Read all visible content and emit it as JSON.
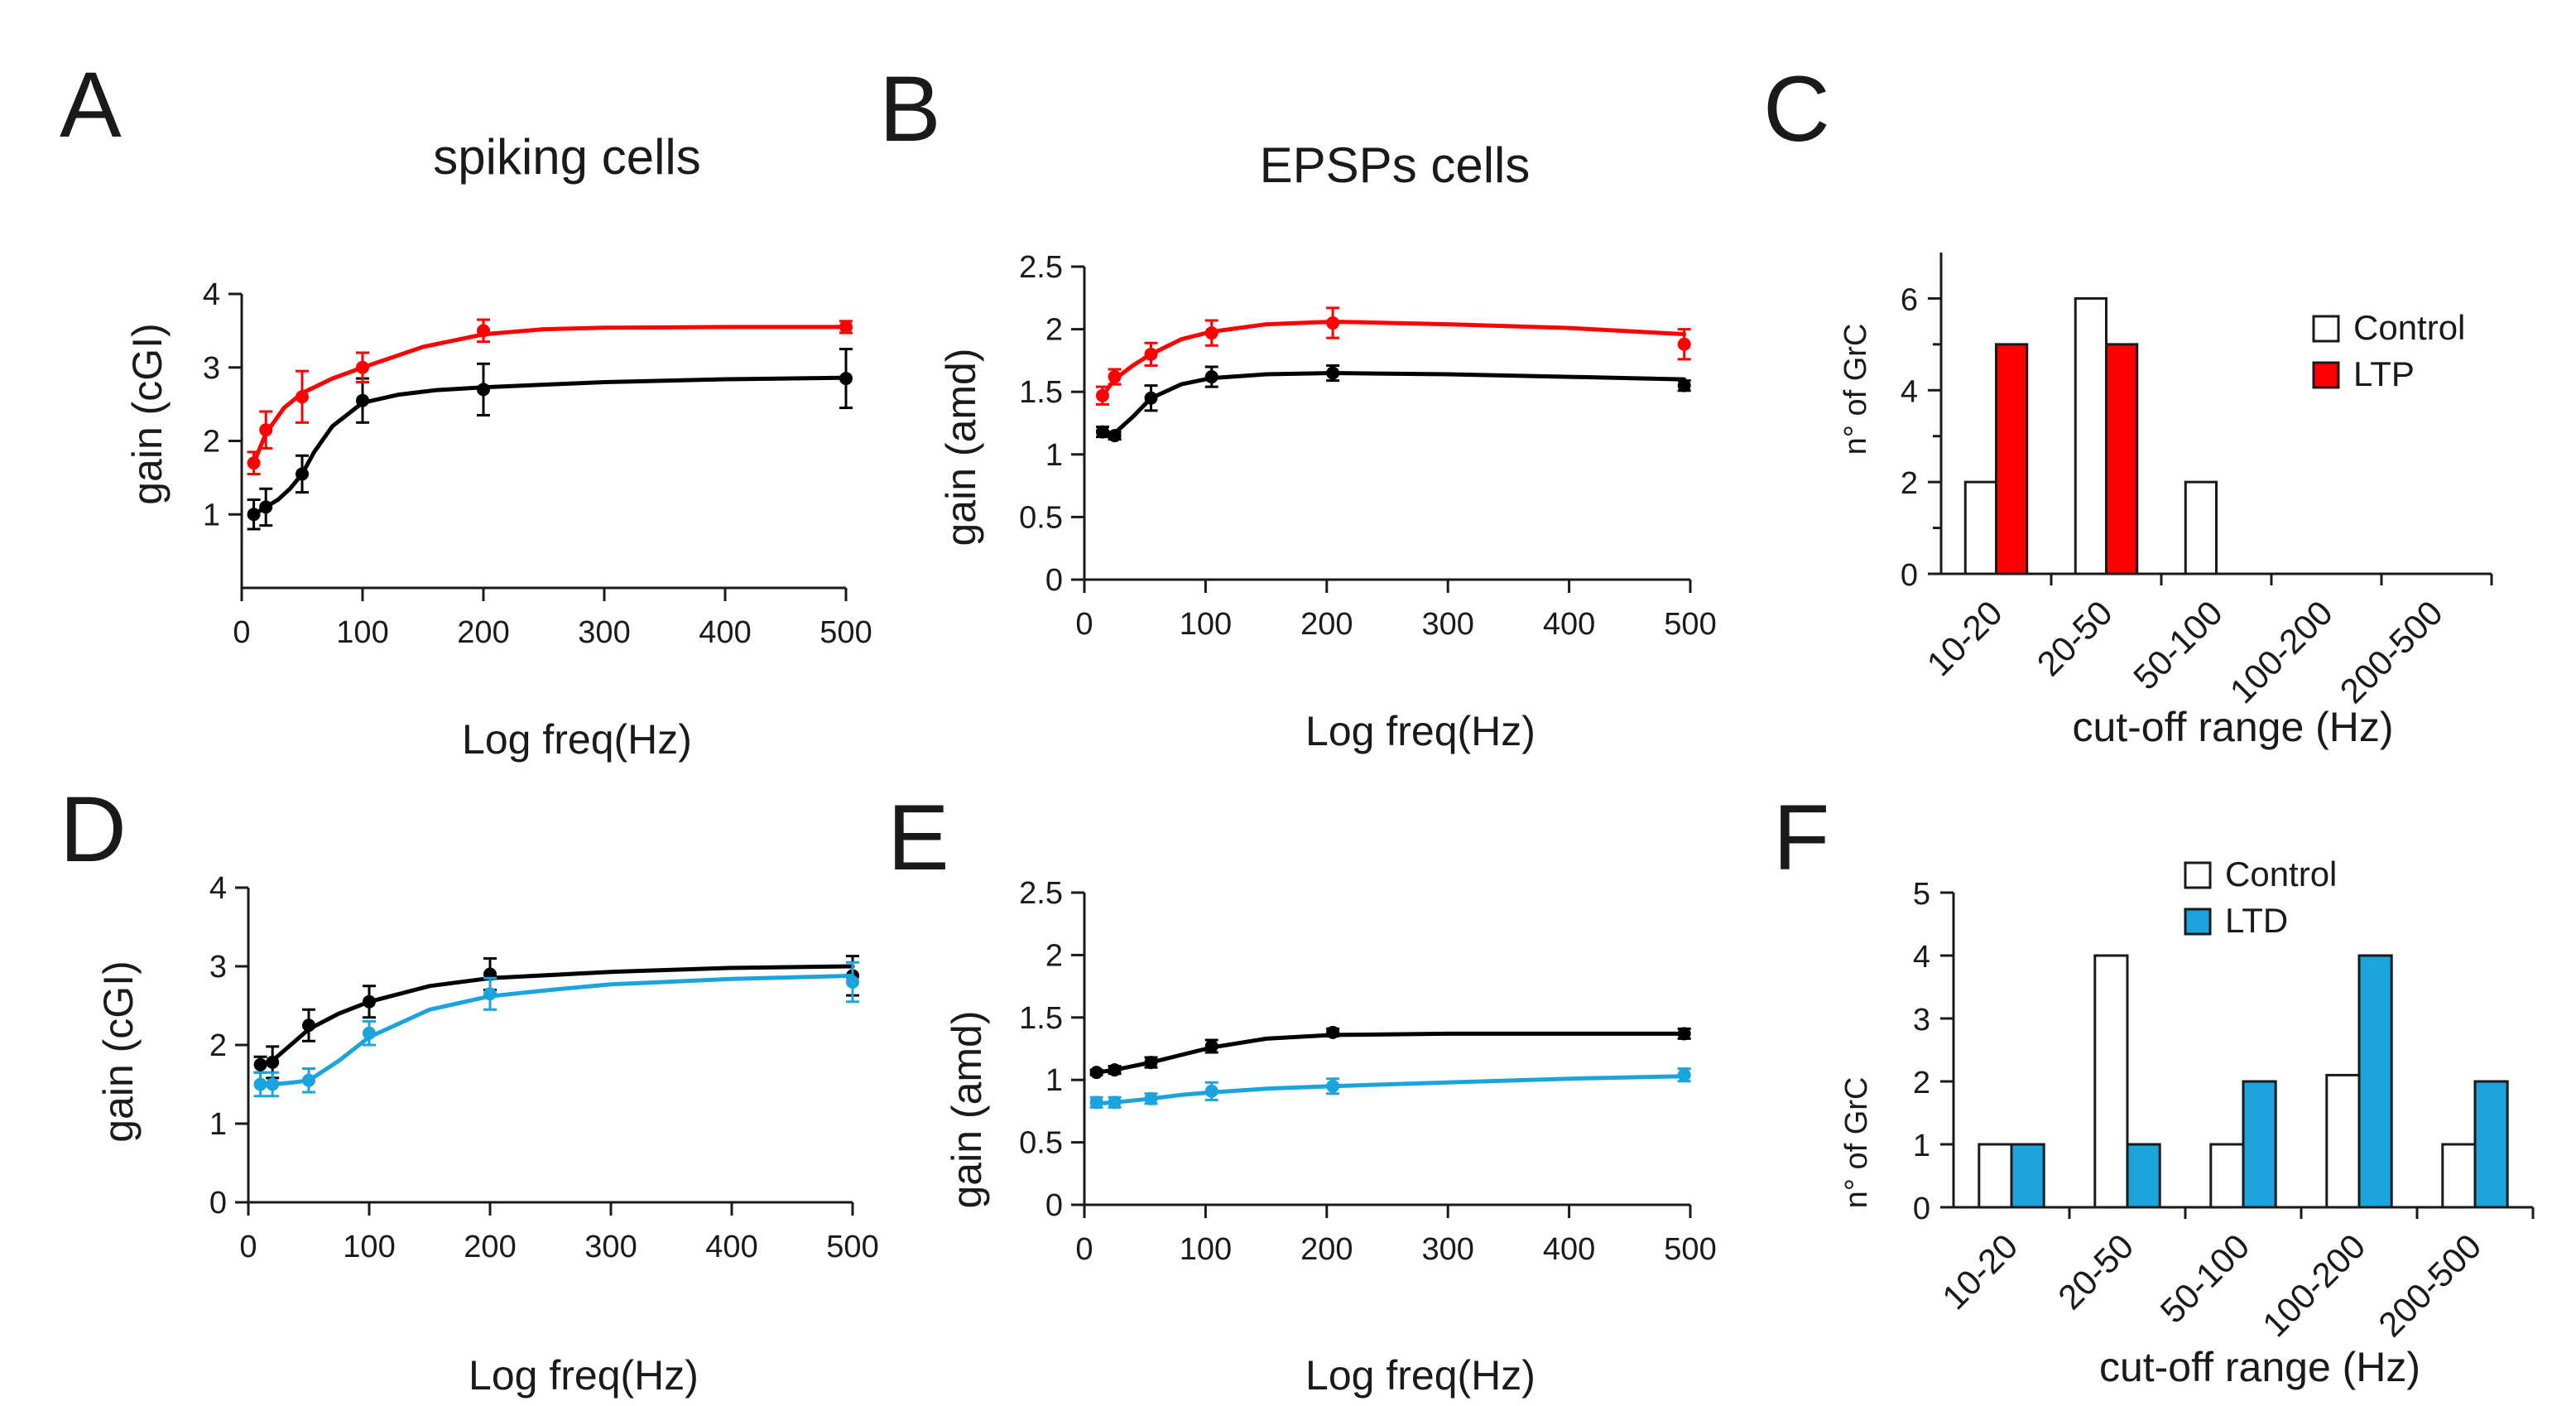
{
  "figure": {
    "panels": {
      "A": {
        "letter": "A",
        "title": "spiking cells"
      },
      "B": {
        "letter": "B",
        "title": "EPSPs cells"
      },
      "C": {
        "letter": "C"
      },
      "D": {
        "letter": "D"
      },
      "E": {
        "letter": "E"
      },
      "F": {
        "letter": "F"
      }
    }
  },
  "colors": {
    "control": "#000000",
    "ltp": "#ff0000",
    "ltd": "#1aa3dc",
    "bar_outline": "#1a1a1a",
    "control_bar_fill": "#ffffff"
  },
  "chart_data": [
    {
      "id": "A",
      "type": "line",
      "xlabel": "Log freq(Hz)",
      "ylabel": "gain (cGI)",
      "xlim": [
        0,
        500
      ],
      "ylim": [
        0,
        4
      ],
      "xticks": [
        0,
        100,
        200,
        300,
        400,
        500
      ],
      "yticks": [
        1,
        2,
        3,
        4
      ],
      "series": [
        {
          "name": "Control",
          "color": "#000000",
          "x": [
            10,
            20,
            50,
            100,
            200,
            500
          ],
          "y": [
            1.0,
            1.1,
            1.55,
            2.55,
            2.7,
            2.85
          ],
          "err": [
            0.2,
            0.25,
            0.25,
            0.3,
            0.35,
            0.4
          ],
          "fit": [
            [
              10,
              1.0
            ],
            [
              20,
              1.1
            ],
            [
              30,
              1.2
            ],
            [
              40,
              1.35
            ],
            [
              50,
              1.55
            ],
            [
              60,
              1.85
            ],
            [
              75,
              2.2
            ],
            [
              100,
              2.52
            ],
            [
              130,
              2.63
            ],
            [
              160,
              2.69
            ],
            [
              200,
              2.73
            ],
            [
              300,
              2.8
            ],
            [
              400,
              2.84
            ],
            [
              500,
              2.86
            ]
          ]
        },
        {
          "name": "LTP",
          "color": "#ff0000",
          "x": [
            10,
            20,
            50,
            100,
            200,
            500
          ],
          "y": [
            1.7,
            2.15,
            2.6,
            3.0,
            3.5,
            3.55
          ],
          "err": [
            0.15,
            0.25,
            0.35,
            0.2,
            0.15,
            0.08
          ],
          "fit": [
            [
              10,
              1.7
            ],
            [
              20,
              2.1
            ],
            [
              35,
              2.45
            ],
            [
              50,
              2.65
            ],
            [
              75,
              2.85
            ],
            [
              100,
              3.0
            ],
            [
              150,
              3.28
            ],
            [
              200,
              3.45
            ],
            [
              250,
              3.52
            ],
            [
              300,
              3.54
            ],
            [
              400,
              3.55
            ],
            [
              500,
              3.55
            ]
          ]
        }
      ]
    },
    {
      "id": "B",
      "type": "line",
      "xlabel": "Log freq(Hz)",
      "ylabel": "gain (amd)",
      "xlim": [
        0,
        500
      ],
      "ylim": [
        0,
        2.5
      ],
      "xticks": [
        0,
        100,
        200,
        300,
        400,
        500
      ],
      "yticks": [
        0,
        0.5,
        1,
        1.5,
        2,
        2.5
      ],
      "series": [
        {
          "name": "Control",
          "color": "#000000",
          "x": [
            15,
            25,
            55,
            105,
            205,
            495
          ],
          "y": [
            1.18,
            1.15,
            1.45,
            1.62,
            1.65,
            1.55
          ],
          "err": [
            0.04,
            0.03,
            0.1,
            0.08,
            0.06,
            0.04
          ],
          "fit": [
            [
              15,
              1.18
            ],
            [
              25,
              1.17
            ],
            [
              40,
              1.3
            ],
            [
              55,
              1.45
            ],
            [
              80,
              1.56
            ],
            [
              105,
              1.61
            ],
            [
              150,
              1.64
            ],
            [
              205,
              1.65
            ],
            [
              300,
              1.64
            ],
            [
              400,
              1.62
            ],
            [
              495,
              1.6
            ]
          ]
        },
        {
          "name": "LTP",
          "color": "#ff0000",
          "x": [
            15,
            25,
            55,
            105,
            205,
            495
          ],
          "y": [
            1.47,
            1.62,
            1.8,
            1.97,
            2.05,
            1.88
          ],
          "err": [
            0.07,
            0.06,
            0.09,
            0.1,
            0.12,
            0.12
          ],
          "fit": [
            [
              15,
              1.47
            ],
            [
              25,
              1.6
            ],
            [
              40,
              1.71
            ],
            [
              55,
              1.8
            ],
            [
              80,
              1.92
            ],
            [
              105,
              1.98
            ],
            [
              150,
              2.04
            ],
            [
              205,
              2.06
            ],
            [
              300,
              2.04
            ],
            [
              400,
              2.01
            ],
            [
              495,
              1.96
            ]
          ]
        }
      ]
    },
    {
      "id": "C",
      "type": "bar",
      "xlabel": "cut-off range (Hz)",
      "ylabel": "n° of GrC",
      "ylim": [
        0,
        7
      ],
      "yticks": [
        0,
        2,
        4,
        6
      ],
      "categories": [
        "10-20",
        "20-50",
        "50-100",
        "100-200",
        "200-500"
      ],
      "series": [
        {
          "name": "Control",
          "values": [
            2,
            6,
            2,
            0,
            0
          ]
        },
        {
          "name": "LTP",
          "values": [
            5,
            5,
            0,
            0,
            0
          ]
        }
      ],
      "legend": [
        "Control",
        "LTP"
      ]
    },
    {
      "id": "D",
      "type": "line",
      "xlabel": "Log freq(Hz)",
      "ylabel": "gain (cGI)",
      "xlim": [
        0,
        500
      ],
      "ylim": [
        0,
        4
      ],
      "xticks": [
        0,
        100,
        200,
        300,
        400,
        500
      ],
      "yticks": [
        0,
        1,
        2,
        3,
        4
      ],
      "series": [
        {
          "name": "Control",
          "color": "#000000",
          "x": [
            10,
            20,
            50,
            100,
            200,
            500
          ],
          "y": [
            1.75,
            1.78,
            2.25,
            2.55,
            2.9,
            2.88
          ],
          "err": [
            0.1,
            0.2,
            0.2,
            0.2,
            0.2,
            0.25
          ],
          "fit": [
            [
              10,
              1.75
            ],
            [
              20,
              1.8
            ],
            [
              35,
              2.0
            ],
            [
              50,
              2.2
            ],
            [
              75,
              2.4
            ],
            [
              100,
              2.55
            ],
            [
              150,
              2.75
            ],
            [
              200,
              2.85
            ],
            [
              300,
              2.93
            ],
            [
              400,
              2.98
            ],
            [
              500,
              3.0
            ]
          ]
        },
        {
          "name": "LTD",
          "color": "#1aa3dc",
          "x": [
            10,
            20,
            50,
            100,
            200,
            500
          ],
          "y": [
            1.5,
            1.5,
            1.55,
            2.15,
            2.65,
            2.8
          ],
          "err": [
            0.15,
            0.15,
            0.15,
            0.15,
            0.2,
            0.25
          ],
          "fit": [
            [
              10,
              1.5
            ],
            [
              20,
              1.5
            ],
            [
              35,
              1.52
            ],
            [
              50,
              1.55
            ],
            [
              75,
              1.8
            ],
            [
              100,
              2.1
            ],
            [
              150,
              2.45
            ],
            [
              200,
              2.62
            ],
            [
              250,
              2.7
            ],
            [
              300,
              2.77
            ],
            [
              400,
              2.84
            ],
            [
              500,
              2.88
            ]
          ]
        }
      ]
    },
    {
      "id": "E",
      "type": "line",
      "xlabel": "Log freq(Hz)",
      "ylabel": "gain (amd)",
      "xlim": [
        0,
        500
      ],
      "ylim": [
        0,
        2.5
      ],
      "xticks": [
        0,
        100,
        200,
        300,
        400,
        500
      ],
      "yticks": [
        0,
        0.5,
        1,
        1.5,
        2,
        2.5
      ],
      "series": [
        {
          "name": "Control",
          "color": "#000000",
          "x": [
            10,
            25,
            55,
            105,
            205,
            495
          ],
          "y": [
            1.06,
            1.08,
            1.14,
            1.27,
            1.38,
            1.37
          ],
          "err": [
            0.02,
            0.03,
            0.04,
            0.05,
            0.03,
            0.04
          ],
          "fit": [
            [
              10,
              1.06
            ],
            [
              25,
              1.08
            ],
            [
              55,
              1.14
            ],
            [
              80,
              1.2
            ],
            [
              105,
              1.26
            ],
            [
              150,
              1.33
            ],
            [
              205,
              1.36
            ],
            [
              300,
              1.37
            ],
            [
              400,
              1.37
            ],
            [
              495,
              1.37
            ]
          ]
        },
        {
          "name": "LTD",
          "color": "#1aa3dc",
          "x": [
            10,
            25,
            55,
            105,
            205,
            495
          ],
          "y": [
            0.82,
            0.82,
            0.85,
            0.91,
            0.95,
            1.04
          ],
          "err": [
            0.04,
            0.04,
            0.04,
            0.07,
            0.06,
            0.05
          ],
          "fit": [
            [
              10,
              0.81
            ],
            [
              25,
              0.82
            ],
            [
              55,
              0.85
            ],
            [
              80,
              0.88
            ],
            [
              105,
              0.9
            ],
            [
              150,
              0.93
            ],
            [
              205,
              0.95
            ],
            [
              300,
              0.98
            ],
            [
              400,
              1.01
            ],
            [
              495,
              1.03
            ]
          ]
        }
      ]
    },
    {
      "id": "F",
      "type": "bar",
      "xlabel": "cut-off range (Hz)",
      "ylabel": "n° of GrC",
      "ylim": [
        0,
        5
      ],
      "yticks": [
        0,
        1,
        2,
        3,
        4,
        5
      ],
      "categories": [
        "10-20",
        "20-50",
        "50-100",
        "100-200",
        "200-500"
      ],
      "series": [
        {
          "name": "Control",
          "values": [
            1,
            4,
            1,
            2.1,
            1
          ]
        },
        {
          "name": "LTD",
          "values": [
            1,
            1,
            2,
            4,
            2
          ]
        }
      ],
      "legend": [
        "Control",
        "LTD"
      ]
    }
  ]
}
